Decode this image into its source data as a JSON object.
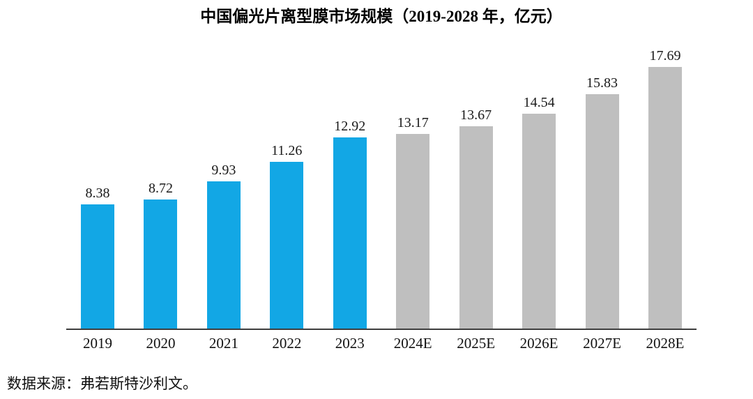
{
  "chart_data": {
    "type": "bar",
    "title": "中国偏光片离型膜市场规模（2019-2028 年，亿元）",
    "categories": [
      "2019",
      "2020",
      "2021",
      "2022",
      "2023",
      "2024E",
      "2025E",
      "2026E",
      "2027E",
      "2028E"
    ],
    "values": [
      8.38,
      8.72,
      9.93,
      11.26,
      12.92,
      13.17,
      13.67,
      14.54,
      15.83,
      17.69
    ],
    "bar_kinds": [
      "actual",
      "actual",
      "actual",
      "actual",
      "actual",
      "forecast",
      "forecast",
      "forecast",
      "forecast",
      "forecast"
    ],
    "value_labels": true,
    "xlabel": "",
    "ylabel": "",
    "ylim": [
      0,
      18
    ],
    "grid": false,
    "legend": "none",
    "colors": {
      "actual": "#12A7E5",
      "forecast": "#BFBFBF",
      "axis_line": "#3d3d3d",
      "label_text": "#1a1a1a"
    }
  },
  "footer": {
    "source_note": "数据来源：弗若斯特沙利文。"
  }
}
